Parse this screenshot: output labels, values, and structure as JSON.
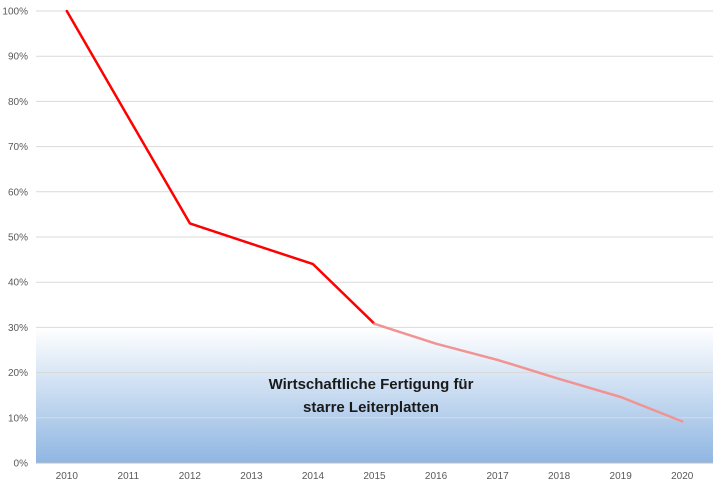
{
  "chart_data": {
    "type": "line",
    "title": "",
    "xlabel": "",
    "ylabel": "",
    "categories": [
      "2010",
      "2011",
      "2012",
      "2013",
      "2014",
      "2015",
      "2016",
      "2017",
      "2018",
      "2019",
      "2020"
    ],
    "ylim": [
      0,
      100
    ],
    "y_tick_format": "percent",
    "y_ticks": [
      "0%",
      "10%",
      "20%",
      "30%",
      "40%",
      "50%",
      "60%",
      "70%",
      "80%",
      "90%",
      "100%"
    ],
    "grid": true,
    "legend": "none",
    "series": [
      {
        "values": [
          100,
          76.5,
          53,
          48.5,
          44,
          30.8,
          null,
          null,
          null,
          null,
          null
        ],
        "color": "#ff0000"
      },
      {
        "values": [
          null,
          null,
          null,
          null,
          null,
          30.8,
          26.4,
          22.8,
          18.6,
          14.6,
          9.2
        ],
        "color": "#f29393"
      }
    ],
    "shaded_region": {
      "y_from": 0,
      "y_to": 30,
      "color_top": "#ffffff",
      "color_bottom": "#8fb6e2",
      "label_lines": [
        "Wirtschaftliche Fertigung für",
        "starre Leiterplatten"
      ]
    }
  }
}
